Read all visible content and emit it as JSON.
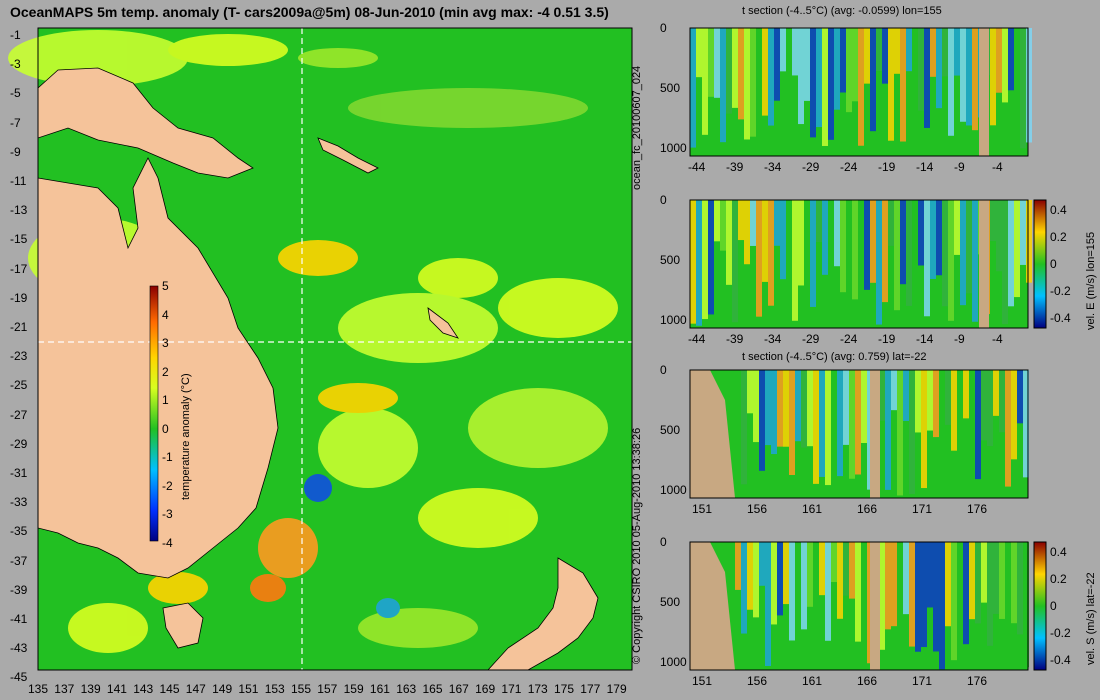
{
  "map": {
    "title": "OceanMAPS 5m temp. anomaly (T- cars2009a@5m) 08-Jun-2010 (min avg max: -4 0.51 3.5)",
    "lat_labels": [
      "-1",
      "-3",
      "-5",
      "-7",
      "-9",
      "-11",
      "-13",
      "-15",
      "-17",
      "-19",
      "-21",
      "-23",
      "-25",
      "-27",
      "-29",
      "-31",
      "-33",
      "-35",
      "-37",
      "-39",
      "-41",
      "-43",
      "-45"
    ],
    "lon_labels": [
      "135",
      "137",
      "139",
      "141",
      "143",
      "145",
      "147",
      "149",
      "151",
      "153",
      "155",
      "157",
      "159",
      "161",
      "163",
      "165",
      "167",
      "169",
      "171",
      "173",
      "175",
      "177",
      "179"
    ],
    "colorbar": {
      "label": "temperature anomaly (°C)",
      "ticks": [
        "5",
        "4",
        "3",
        "2",
        "1",
        "0",
        "-1",
        "-2",
        "-3",
        "-4"
      ]
    },
    "colors": {
      "ocean": "#22c022",
      "land": "#f5c39a",
      "warm": "#ffd400",
      "cool": "#1fa3d8"
    }
  },
  "panels": [
    {
      "id": "p1",
      "title": "t section (-4..5°C) (avg: -0.0599) lon=155",
      "x_ticks": [
        "-44",
        "-39",
        "-34",
        "-29",
        "-24",
        "-19",
        "-14",
        "-9",
        "-4"
      ],
      "y_ticks": [
        "0",
        "500",
        "1000"
      ]
    },
    {
      "id": "p2",
      "title": "",
      "x_ticks": [
        "-44",
        "-39",
        "-34",
        "-29",
        "-24",
        "-19",
        "-14",
        "-9",
        "-4"
      ],
      "y_ticks": [
        "0",
        "500",
        "1000"
      ]
    },
    {
      "id": "p3",
      "title": "t section (-4..5°C) (avg: 0.759) lat=-22",
      "x_ticks": [
        "151",
        "156",
        "161",
        "166",
        "171",
        "176"
      ],
      "y_ticks": [
        "0",
        "500",
        "1000"
      ]
    },
    {
      "id": "p4",
      "title": "",
      "x_ticks": [
        "151",
        "156",
        "161",
        "166",
        "171",
        "176"
      ],
      "y_ticks": [
        "0",
        "500",
        "1000"
      ]
    }
  ],
  "colorbar_e": {
    "label": "vel. E (m/s) lon=155",
    "ticks": [
      "0.4",
      "0.2",
      "0",
      "-0.2",
      "-0.4"
    ]
  },
  "colorbar_s": {
    "label": "vel. S (m/s) lat=-22",
    "ticks": [
      "0.4",
      "0.2",
      "0",
      "-0.2",
      "-0.4"
    ]
  },
  "side_labels": {
    "run": "ocean_fc_20100607_024",
    "copyright": "© Copyright CSIRO 2010   05-Aug-2010 13:38:26"
  }
}
